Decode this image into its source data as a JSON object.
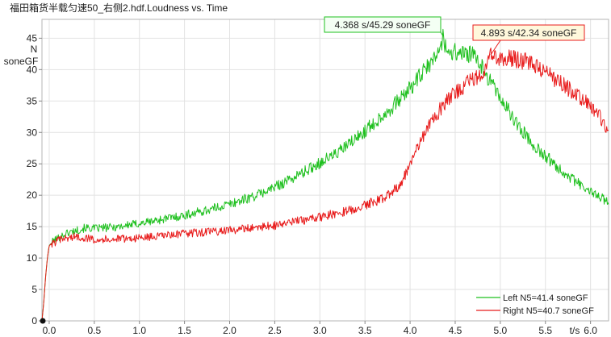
{
  "chart_data": {
    "type": "line",
    "title": "福田箱货半载匀速50_右侧2.hdf.Loudness vs. Time",
    "xlabel": "t/s",
    "ylabel_lines": [
      "N",
      "soneGF"
    ],
    "xlim": [
      -0.08,
      6.2
    ],
    "ylim": [
      0,
      48
    ],
    "xticks": [
      0.0,
      0.5,
      1.0,
      1.5,
      2.0,
      2.5,
      3.0,
      3.5,
      4.0,
      4.5,
      5.0,
      5.5,
      6.0
    ],
    "xtick_labels": [
      "0.0",
      "0.5",
      "1.0",
      "1.5",
      "2.0",
      "2.5",
      "3.0",
      "3.5",
      "4.0",
      "4.5",
      "5.0",
      "5.5",
      "6.0"
    ],
    "yticks": [
      0,
      5,
      10,
      15,
      20,
      25,
      30,
      35,
      40,
      45
    ],
    "ytick_labels": [
      "0",
      "5",
      "10",
      "15",
      "20",
      "25",
      "30",
      "35",
      "40",
      "45"
    ],
    "grid": true,
    "legend_position": "bottom-right",
    "series": [
      {
        "name": "Left N5=41.4 soneGF",
        "color": "#1fc01f",
        "x": [
          -0.08,
          -0.06,
          -0.04,
          -0.02,
          0.0,
          0.05,
          0.1,
          0.2,
          0.3,
          0.4,
          0.5,
          0.7,
          1.0,
          1.3,
          1.5,
          1.8,
          2.0,
          2.3,
          2.5,
          2.8,
          3.0,
          3.2,
          3.4,
          3.6,
          3.8,
          4.0,
          4.1,
          4.2,
          4.3,
          4.368,
          4.4,
          4.5,
          4.6,
          4.7,
          4.8,
          5.0,
          5.2,
          5.4,
          5.6,
          5.8,
          6.0,
          6.2
        ],
        "y": [
          0,
          3,
          7,
          10,
          12,
          12.8,
          13.2,
          14.0,
          14.4,
          14.8,
          14.7,
          14.9,
          15.5,
          16.3,
          16.8,
          17.8,
          18.6,
          20.0,
          21.3,
          23.5,
          25.2,
          26.8,
          29.0,
          31.5,
          34.0,
          37.0,
          38.8,
          40.5,
          42.3,
          45.29,
          43.0,
          42.8,
          42.6,
          42.2,
          40.3,
          35.5,
          31.0,
          27.5,
          25.0,
          22.5,
          20.5,
          19.0
        ]
      },
      {
        "name": "Right N5=40.7 soneGF",
        "color": "#e81c1c",
        "x": [
          -0.08,
          -0.06,
          -0.04,
          -0.02,
          0.0,
          0.1,
          0.2,
          0.3,
          0.5,
          0.7,
          1.0,
          1.3,
          1.5,
          1.8,
          2.0,
          2.3,
          2.5,
          2.8,
          3.0,
          3.3,
          3.5,
          3.7,
          3.8,
          3.9,
          4.0,
          4.2,
          4.4,
          4.6,
          4.8,
          4.893,
          5.0,
          5.1,
          5.3,
          5.5,
          5.7,
          5.9,
          6.1,
          6.2
        ],
        "y": [
          0,
          3,
          7,
          10,
          12,
          12.8,
          13.2,
          13.4,
          13.0,
          13.0,
          13.2,
          13.6,
          13.9,
          14.2,
          14.4,
          14.9,
          15.2,
          16.0,
          16.5,
          17.5,
          18.4,
          19.5,
          20.5,
          22.0,
          25.0,
          31.0,
          35.0,
          37.5,
          39.5,
          42.34,
          42.0,
          41.8,
          41.3,
          39.5,
          37.5,
          35.5,
          32.5,
          30.5
        ]
      }
    ],
    "annotations": [
      {
        "text": "4.368 s/45.29 soneGF",
        "x": 4.368,
        "y": 45.29,
        "series": 0
      },
      {
        "text": "4.893 s/42.34 soneGF",
        "x": 4.893,
        "y": 42.34,
        "series": 1
      }
    ]
  }
}
